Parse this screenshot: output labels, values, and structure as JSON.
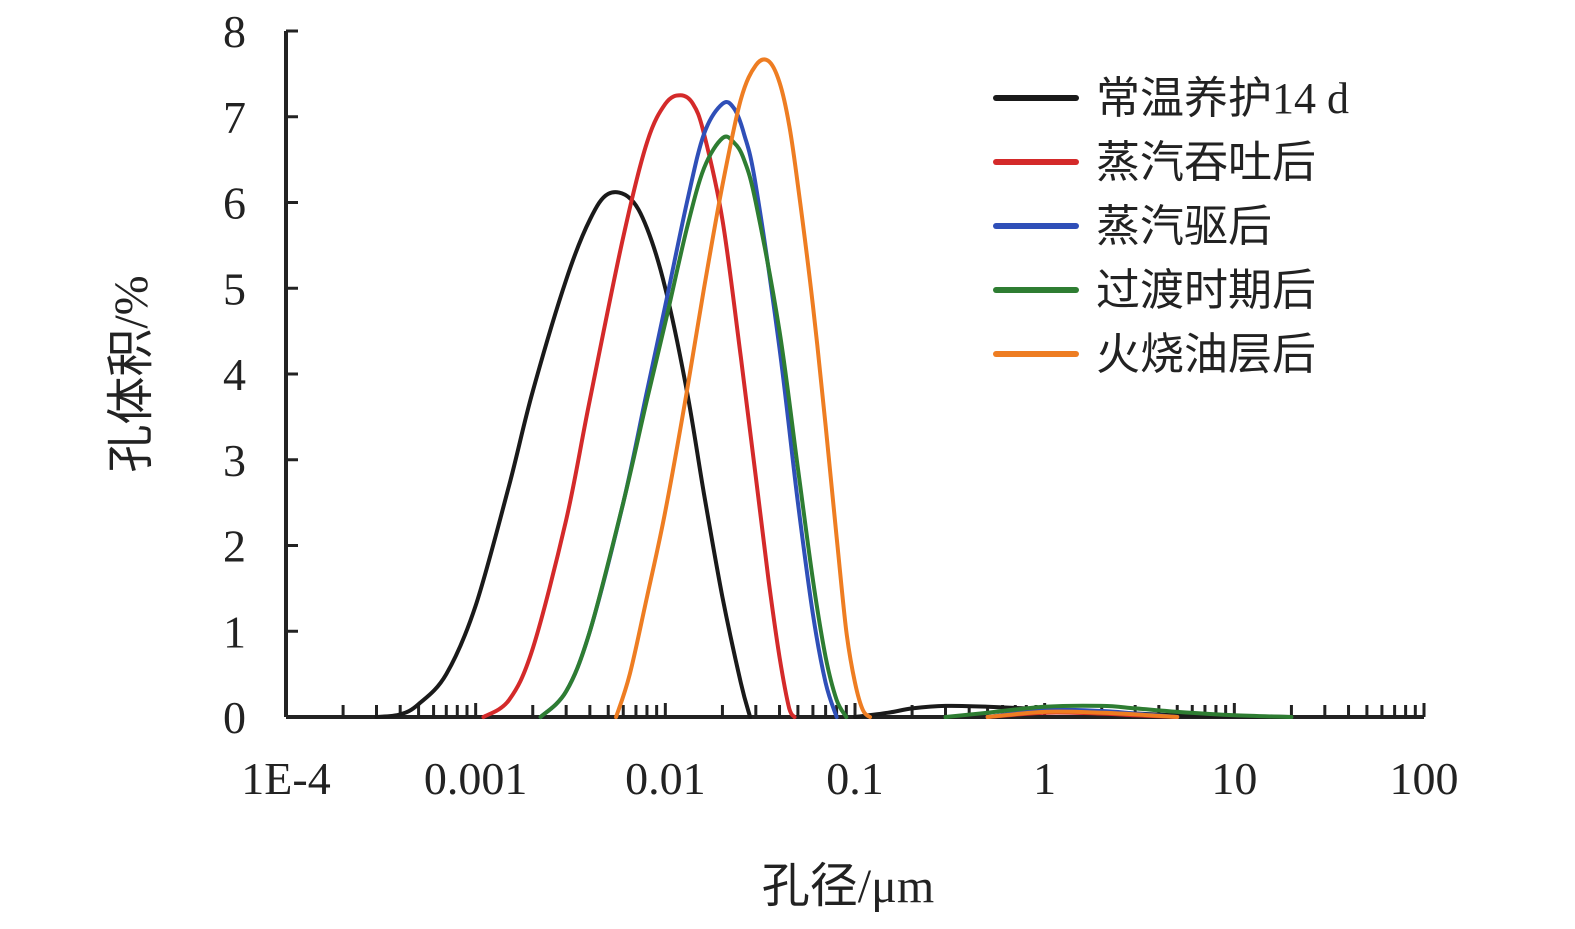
{
  "chart_data": {
    "type": "line",
    "title": "",
    "xlabel": "孔径/μm",
    "ylabel": "孔体积/%",
    "x_scale": "log",
    "xlim": [
      0.0001,
      100
    ],
    "ylim": [
      0,
      8
    ],
    "x_ticks": [
      0.0001,
      0.001,
      0.01,
      0.1,
      1,
      10,
      100
    ],
    "x_tick_labels": [
      "1E-4",
      "0.001",
      "0.01",
      "0.1",
      "1",
      "10",
      "100"
    ],
    "y_ticks": [
      0,
      1,
      2,
      3,
      4,
      5,
      6,
      7,
      8
    ],
    "y_tick_labels": [
      "0",
      "1",
      "2",
      "3",
      "4",
      "5",
      "6",
      "7",
      "8"
    ],
    "grid": false,
    "legend_position": "top-right",
    "series": [
      {
        "name": "常温养护14 d",
        "color": "#1a1a1a",
        "x": [
          0.0003,
          0.0004,
          0.0005,
          0.0007,
          0.001,
          0.0015,
          0.002,
          0.003,
          0.004,
          0.005,
          0.0065,
          0.008,
          0.01,
          0.013,
          0.016,
          0.02,
          0.025,
          0.028,
          0.1,
          0.15,
          0.2,
          0.3,
          0.5,
          1,
          2,
          5,
          10,
          20
        ],
        "y": [
          0,
          0.03,
          0.15,
          0.5,
          1.3,
          2.7,
          3.8,
          5.1,
          5.8,
          6.1,
          6.05,
          5.7,
          5.0,
          3.8,
          2.6,
          1.4,
          0.4,
          0,
          0,
          0.05,
          0.1,
          0.13,
          0.12,
          0.09,
          0.06,
          0.02,
          0.01,
          0
        ]
      },
      {
        "name": "蒸汽吞吐后",
        "color": "#d42a2a",
        "x": [
          0.0011,
          0.0015,
          0.002,
          0.003,
          0.004,
          0.006,
          0.008,
          0.01,
          0.012,
          0.014,
          0.016,
          0.02,
          0.025,
          0.03,
          0.035,
          0.04,
          0.045,
          0.048,
          0.5,
          1,
          2,
          3,
          5
        ],
        "y": [
          0,
          0.2,
          0.8,
          2.3,
          3.7,
          5.6,
          6.7,
          7.15,
          7.25,
          7.15,
          6.8,
          5.8,
          4.2,
          2.8,
          1.6,
          0.7,
          0.1,
          0,
          0,
          0.05,
          0.04,
          0.02,
          0
        ]
      },
      {
        "name": "蒸汽驱后",
        "color": "#2f4fb8",
        "x": [
          0.0022,
          0.003,
          0.004,
          0.006,
          0.008,
          0.01,
          0.013,
          0.016,
          0.02,
          0.023,
          0.026,
          0.03,
          0.04,
          0.05,
          0.06,
          0.07,
          0.08,
          0.5,
          1,
          2,
          3,
          5
        ],
        "y": [
          0,
          0.3,
          1.0,
          2.5,
          3.8,
          4.8,
          6.0,
          6.8,
          7.15,
          7.1,
          6.8,
          6.2,
          4.3,
          2.5,
          1.2,
          0.4,
          0,
          0,
          0.08,
          0.07,
          0.04,
          0
        ]
      },
      {
        "name": "过渡时期后",
        "color": "#2e7d32",
        "x": [
          0.0022,
          0.003,
          0.004,
          0.006,
          0.008,
          0.01,
          0.013,
          0.016,
          0.02,
          0.023,
          0.026,
          0.03,
          0.04,
          0.05,
          0.06,
          0.07,
          0.08,
          0.09,
          0.3,
          0.5,
          1,
          2,
          3,
          5,
          10,
          20
        ],
        "y": [
          0,
          0.3,
          1.0,
          2.5,
          3.7,
          4.6,
          5.7,
          6.4,
          6.75,
          6.7,
          6.5,
          6.0,
          4.5,
          2.9,
          1.6,
          0.7,
          0.2,
          0,
          0,
          0.05,
          0.12,
          0.13,
          0.1,
          0.06,
          0.02,
          0
        ]
      },
      {
        "name": "火烧油层后",
        "color": "#ee7d22",
        "x": [
          0.0055,
          0.0065,
          0.008,
          0.01,
          0.013,
          0.016,
          0.02,
          0.025,
          0.03,
          0.035,
          0.04,
          0.045,
          0.05,
          0.06,
          0.07,
          0.08,
          0.09,
          0.1,
          0.11,
          0.12,
          0.5,
          1,
          2,
          3,
          5
        ],
        "y": [
          0,
          0.5,
          1.4,
          2.4,
          3.8,
          5.0,
          6.2,
          7.2,
          7.6,
          7.65,
          7.4,
          6.9,
          6.2,
          4.8,
          3.4,
          2.1,
          1.0,
          0.4,
          0.08,
          0,
          0,
          0.06,
          0.05,
          0.03,
          0
        ]
      }
    ]
  }
}
